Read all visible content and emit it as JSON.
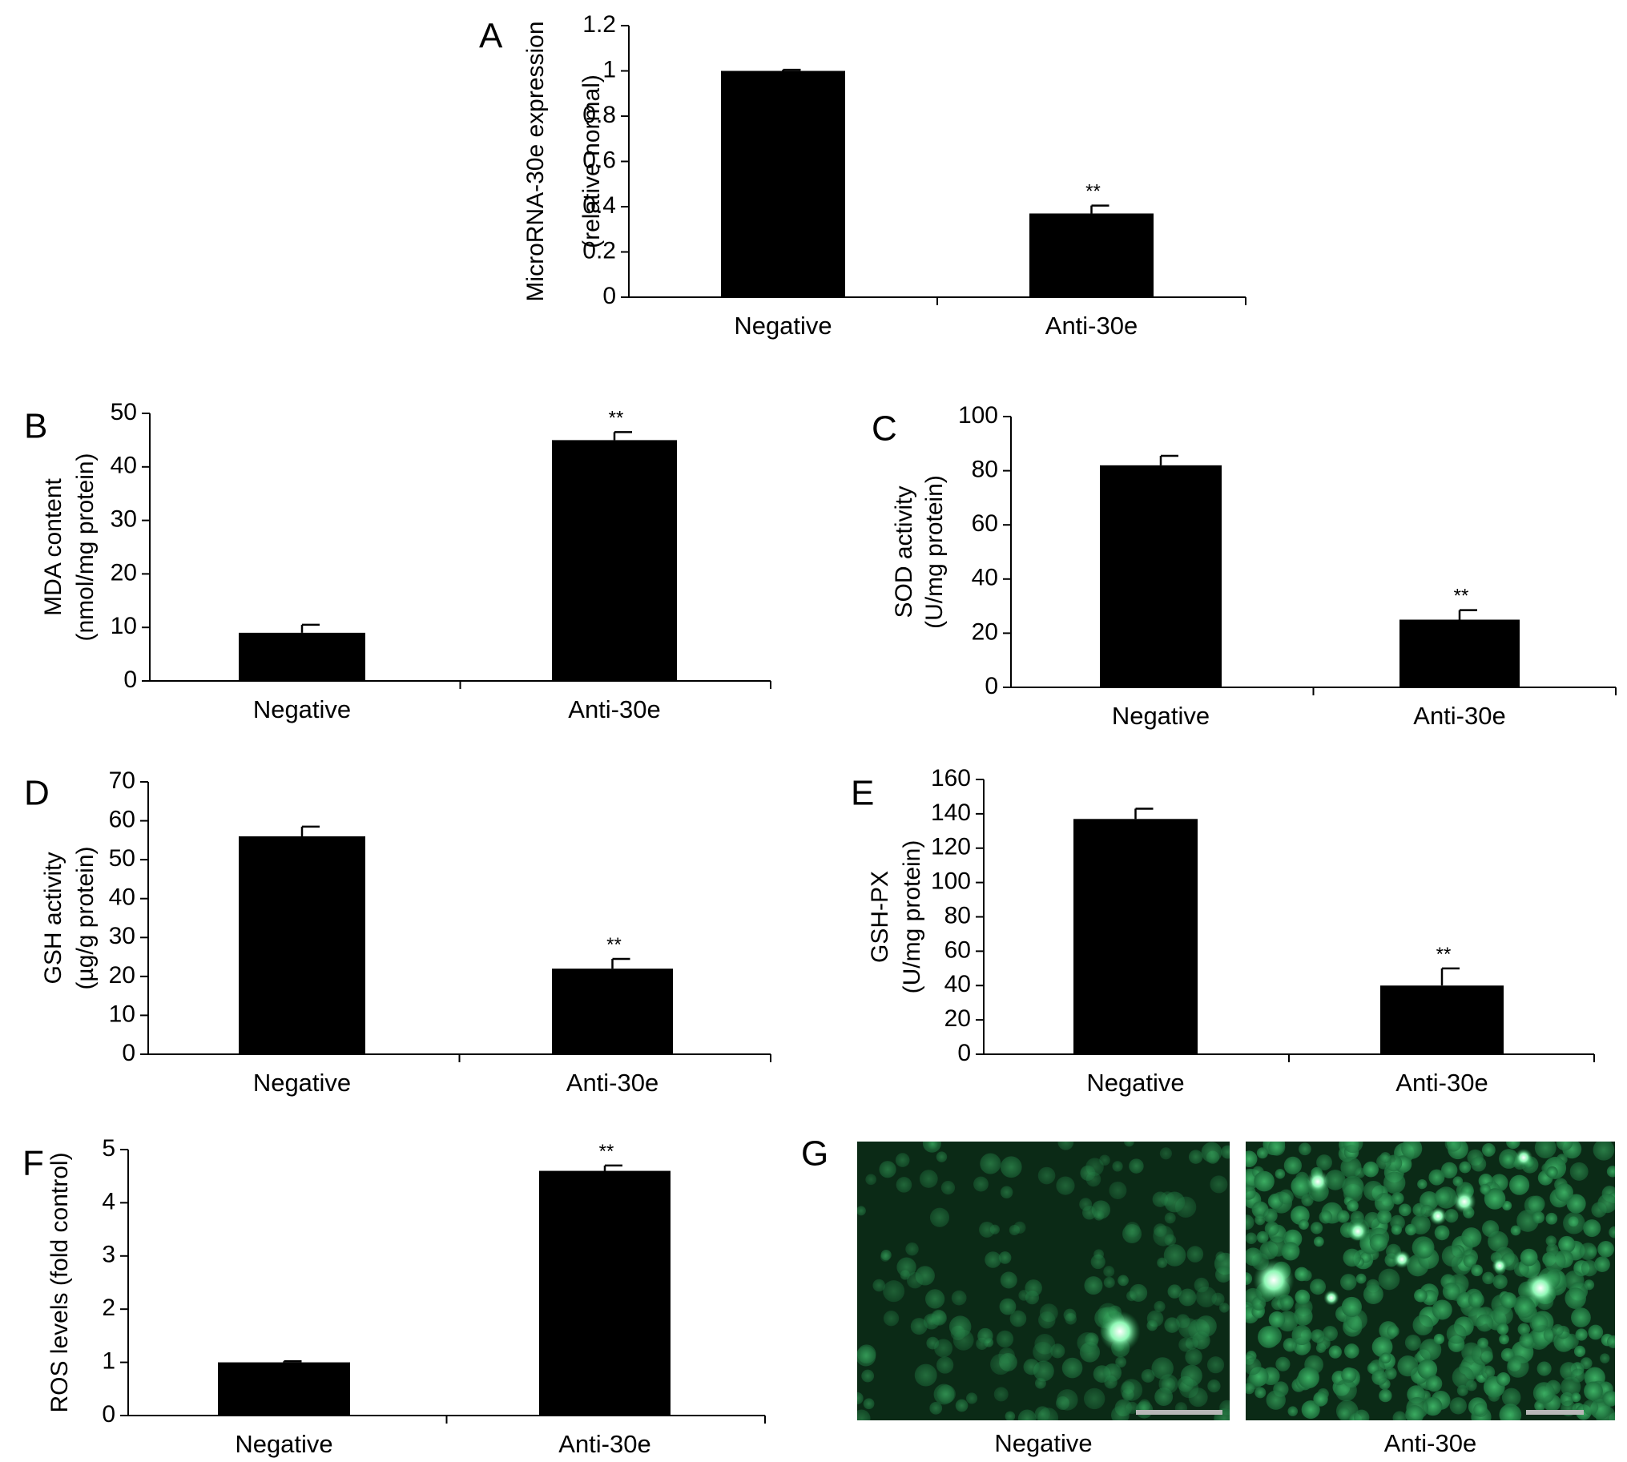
{
  "chart_data": [
    {
      "panel": "A",
      "type": "bar",
      "categories": [
        "Negative",
        "Anti-30e"
      ],
      "values": [
        1.0,
        0.37
      ],
      "errors": [
        0.005,
        0.035
      ],
      "annotations": [
        "",
        "**"
      ],
      "ylabel_lines": [
        "MicroRNA-30e expression",
        "(relative normal)"
      ],
      "yticks": [
        "0",
        "0.2",
        "0.4",
        "0.6",
        "0.8",
        "1",
        "1.2"
      ],
      "ylim": [
        0,
        1.2
      ]
    },
    {
      "panel": "B",
      "type": "bar",
      "categories": [
        "Negative",
        "Anti-30e"
      ],
      "values": [
        9,
        45
      ],
      "errors": [
        1.5,
        1.5
      ],
      "annotations": [
        "",
        "**"
      ],
      "ylabel_lines": [
        "MDA content",
        "(nmol/mg protein)"
      ],
      "yticks": [
        "0",
        "10",
        "20",
        "30",
        "40",
        "50"
      ],
      "ylim": [
        0,
        50
      ]
    },
    {
      "panel": "C",
      "type": "bar",
      "categories": [
        "Negative",
        "Anti-30e"
      ],
      "values": [
        82,
        25
      ],
      "errors": [
        3.5,
        3.5
      ],
      "annotations": [
        "",
        "**"
      ],
      "ylabel_lines": [
        "SOD activity",
        "(U/mg protein)"
      ],
      "yticks": [
        "0",
        "20",
        "40",
        "60",
        "80",
        "100"
      ],
      "ylim": [
        0,
        100
      ]
    },
    {
      "panel": "D",
      "type": "bar",
      "categories": [
        "Negative",
        "Anti-30e"
      ],
      "values": [
        56,
        22
      ],
      "errors": [
        2.5,
        2.5
      ],
      "annotations": [
        "",
        "**"
      ],
      "ylabel_lines": [
        "GSH activity",
        "(µg/g protein)"
      ],
      "yticks": [
        "0",
        "10",
        "20",
        "30",
        "40",
        "50",
        "60",
        "70"
      ],
      "ylim": [
        0,
        70
      ]
    },
    {
      "panel": "E",
      "type": "bar",
      "categories": [
        "Negative",
        "Anti-30e"
      ],
      "values": [
        137,
        40
      ],
      "errors": [
        6,
        10
      ],
      "annotations": [
        "",
        "**"
      ],
      "ylabel_lines": [
        "GSH-PX",
        "(U/mg protein)"
      ],
      "yticks": [
        "0",
        "20",
        "40",
        "60",
        "80",
        "100",
        "120",
        "140",
        "160"
      ],
      "ylim": [
        0,
        160
      ]
    },
    {
      "panel": "F",
      "type": "bar",
      "categories": [
        "Negative",
        "Anti-30e"
      ],
      "values": [
        1.0,
        4.6
      ],
      "errors": [
        0.02,
        0.1
      ],
      "annotations": [
        "",
        "**"
      ],
      "ylabel_lines": [
        "ROS levels (fold control)"
      ],
      "yticks": [
        "0",
        "1",
        "2",
        "3",
        "4",
        "5"
      ],
      "ylim": [
        0,
        5
      ]
    }
  ],
  "images": {
    "panel": "G",
    "captions": [
      "Negative",
      "Anti-30e"
    ],
    "background": "#0b2a16",
    "cell_color": "#2f9a55",
    "bright_color": "#7ff0a8"
  },
  "style": {
    "bar_color": "#000000"
  }
}
